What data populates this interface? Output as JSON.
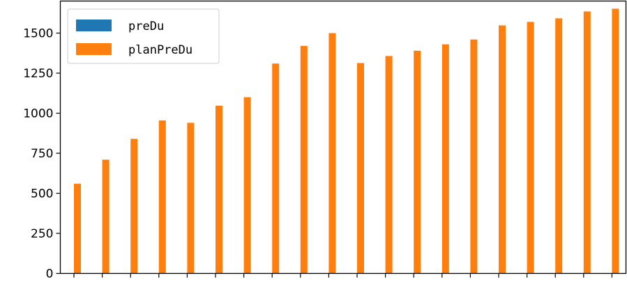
{
  "chart_data": {
    "type": "bar",
    "title": "",
    "xlabel": "",
    "ylabel": "",
    "ylim": [
      0,
      1700
    ],
    "yticks": [
      0,
      250,
      500,
      750,
      1000,
      1250,
      1500
    ],
    "ytick_labels": [
      "0",
      "250",
      "500",
      "750",
      "1000",
      "1250",
      "1500"
    ],
    "x_tick_count": 20,
    "grid": false,
    "legend_position": "top-left",
    "series": [
      {
        "name": "preDu",
        "color": "#1f77b4",
        "values": [
          0,
          0,
          0,
          0,
          0,
          0,
          0,
          0,
          0,
          0,
          0,
          0,
          0,
          0,
          0,
          0,
          0,
          0,
          0,
          0
        ]
      },
      {
        "name": "planPreDu",
        "color": "#ff7f0e",
        "values": [
          560,
          710,
          840,
          955,
          940,
          1047,
          1100,
          1310,
          1420,
          1500,
          1313,
          1357,
          1390,
          1430,
          1460,
          1548,
          1570,
          1592,
          1635,
          1652
        ]
      }
    ]
  }
}
